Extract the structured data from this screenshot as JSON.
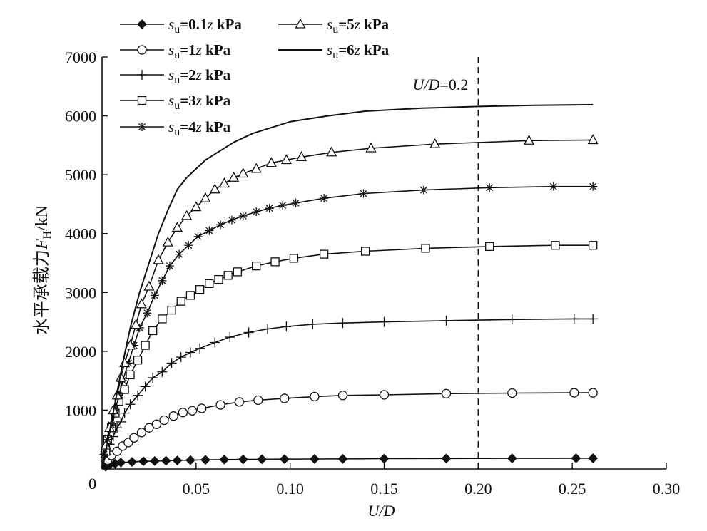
{
  "chart_data": {
    "type": "line",
    "xlabel": "U/D",
    "ylabel": "水平承载力F_H/kN",
    "xlim": [
      0,
      0.3
    ],
    "ylim": [
      0,
      7000
    ],
    "x_ticks": [
      "0.05",
      "0.10",
      "0.15",
      "0.20",
      "0.25",
      "0.30"
    ],
    "y_ticks": [
      "0",
      "1000",
      "2000",
      "3000",
      "4000",
      "5000",
      "6000",
      "7000"
    ],
    "grid": false,
    "legend_position": "top-left",
    "annotation": {
      "text": "U/D=0.2",
      "x": 0.2
    },
    "series": [
      {
        "name": "su=0.1z kPa",
        "marker": "filled-diamond",
        "x": [
          0,
          0.002,
          0.004,
          0.007,
          0.01,
          0.016,
          0.022,
          0.028,
          0.034,
          0.04,
          0.047,
          0.055,
          0.065,
          0.075,
          0.085,
          0.097,
          0.113,
          0.128,
          0.15,
          0.183,
          0.218,
          0.252,
          0.261
        ],
        "y": [
          0,
          40,
          70,
          90,
          110,
          120,
          130,
          135,
          140,
          145,
          150,
          155,
          160,
          162,
          165,
          167,
          170,
          172,
          175,
          178,
          180,
          182,
          182
        ]
      },
      {
        "name": "su=1z kPa",
        "marker": "open-circle",
        "x": [
          0,
          0.003,
          0.005,
          0.008,
          0.011,
          0.014,
          0.017,
          0.021,
          0.025,
          0.029,
          0.033,
          0.038,
          0.043,
          0.048,
          0.053,
          0.063,
          0.073,
          0.083,
          0.097,
          0.113,
          0.128,
          0.15,
          0.183,
          0.218,
          0.251,
          0.261
        ],
        "y": [
          0,
          150,
          230,
          300,
          390,
          450,
          530,
          620,
          700,
          760,
          830,
          900,
          960,
          990,
          1030,
          1090,
          1140,
          1170,
          1200,
          1230,
          1250,
          1260,
          1280,
          1290,
          1295,
          1295
        ]
      },
      {
        "name": "su=2z kPa",
        "marker": "plus",
        "x": [
          0,
          0.002,
          0.004,
          0.006,
          0.008,
          0.01,
          0.012,
          0.015,
          0.019,
          0.023,
          0.027,
          0.032,
          0.037,
          0.042,
          0.047,
          0.052,
          0.06,
          0.068,
          0.078,
          0.088,
          0.098,
          0.112,
          0.128,
          0.15,
          0.183,
          0.218,
          0.251,
          0.261
        ],
        "y": [
          0,
          250,
          420,
          550,
          700,
          800,
          950,
          1100,
          1250,
          1400,
          1550,
          1650,
          1800,
          1900,
          1980,
          2050,
          2150,
          2240,
          2320,
          2380,
          2420,
          2460,
          2480,
          2500,
          2520,
          2540,
          2550,
          2550
        ]
      },
      {
        "name": "su=3z kPa",
        "marker": "open-square",
        "x": [
          0,
          0.002,
          0.003,
          0.005,
          0.007,
          0.009,
          0.012,
          0.015,
          0.019,
          0.023,
          0.027,
          0.032,
          0.037,
          0.042,
          0.047,
          0.052,
          0.057,
          0.062,
          0.067,
          0.072,
          0.082,
          0.092,
          0.102,
          0.118,
          0.14,
          0.172,
          0.206,
          0.241,
          0.261
        ],
        "y": [
          0,
          300,
          500,
          700,
          950,
          1150,
          1350,
          1600,
          1850,
          2100,
          2350,
          2550,
          2700,
          2850,
          2950,
          3050,
          3150,
          3220,
          3290,
          3350,
          3450,
          3520,
          3580,
          3650,
          3700,
          3750,
          3780,
          3800,
          3800
        ]
      },
      {
        "name": "su=4z kPa",
        "marker": "asterisk",
        "x": [
          0,
          0.001,
          0.003,
          0.005,
          0.007,
          0.009,
          0.011,
          0.014,
          0.017,
          0.02,
          0.024,
          0.028,
          0.032,
          0.036,
          0.041,
          0.046,
          0.051,
          0.057,
          0.063,
          0.069,
          0.075,
          0.082,
          0.089,
          0.096,
          0.103,
          0.118,
          0.139,
          0.171,
          0.206,
          0.24,
          0.261
        ],
        "y": [
          0,
          250,
          500,
          750,
          1000,
          1250,
          1500,
          1800,
          2100,
          2400,
          2650,
          2950,
          3200,
          3450,
          3650,
          3800,
          3950,
          4050,
          4150,
          4230,
          4300,
          4370,
          4430,
          4480,
          4520,
          4600,
          4680,
          4740,
          4780,
          4800,
          4800
        ]
      },
      {
        "name": "su=5z kPa",
        "marker": "open-triangle",
        "x": [
          0,
          0.002,
          0.004,
          0.006,
          0.008,
          0.01,
          0.012,
          0.015,
          0.018,
          0.021,
          0.025,
          0.03,
          0.035,
          0.04,
          0.045,
          0.05,
          0.055,
          0.06,
          0.065,
          0.07,
          0.075,
          0.082,
          0.09,
          0.098,
          0.106,
          0.122,
          0.143,
          0.177,
          0.227,
          0.261
        ],
        "y": [
          0,
          400,
          700,
          1000,
          1250,
          1550,
          1800,
          2100,
          2450,
          2800,
          3100,
          3550,
          3850,
          4100,
          4300,
          4450,
          4600,
          4750,
          4850,
          4950,
          5020,
          5100,
          5200,
          5250,
          5300,
          5380,
          5450,
          5520,
          5580,
          5590
        ]
      },
      {
        "name": "su=6z kPa",
        "marker": "none",
        "x": [
          0,
          0.002,
          0.005,
          0.008,
          0.011,
          0.015,
          0.02,
          0.025,
          0.03,
          0.035,
          0.04,
          0.045,
          0.05,
          0.055,
          0.06,
          0.07,
          0.08,
          0.09,
          0.1,
          0.12,
          0.14,
          0.17,
          0.2,
          0.23,
          0.261
        ],
        "y": [
          0,
          300,
          800,
          1300,
          1800,
          2400,
          3000,
          3500,
          4000,
          4400,
          4750,
          4950,
          5100,
          5250,
          5350,
          5550,
          5700,
          5800,
          5900,
          6000,
          6080,
          6130,
          6160,
          6180,
          6190
        ]
      }
    ]
  }
}
